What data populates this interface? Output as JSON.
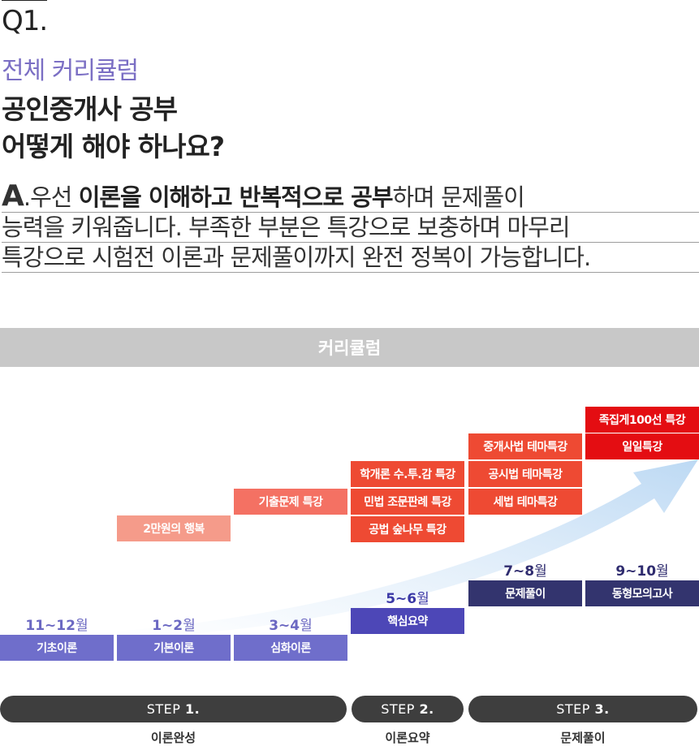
{
  "header": {
    "q_number": "Q1.",
    "subtitle": "전체 커리큘럼",
    "title_line1": "공인중개사 공부",
    "title_line2": "어떻게 해야 하나요?"
  },
  "answer": {
    "prefix": "A",
    "dot": ".",
    "l1_a": "우선 ",
    "l1_bold": "이론을 이해하고 반복적으로 공부",
    "l1_b": "하며 문제풀이",
    "line2": "능력을 키워줍니다. 부족한 부분은 특강으로 보충하며 마무리",
    "line3": "특강으로 시험전 이론과 문제풀이까지 완전 정복이 가능합니다."
  },
  "banner": "커리큘럼",
  "curriculum": {
    "months": {
      "m1": {
        "num": "11~12",
        "unit": "월"
      },
      "m2": {
        "num": "1~2",
        "unit": "월"
      },
      "m3": {
        "num": "3~4",
        "unit": "월"
      },
      "m4": {
        "num": "5~6",
        "unit": "월"
      },
      "m5": {
        "num": "7~8",
        "unit": "월"
      },
      "m6": {
        "num": "9~10",
        "unit": "월"
      }
    },
    "base": {
      "c1": "기초이론",
      "c2": "기본이론",
      "c3": "심화이론",
      "c4": "핵심요약",
      "c5": "문제풀이",
      "c6": "동형모의고사"
    },
    "specials": {
      "s1": "2만원의 행복",
      "s2": "기출문제 특강",
      "s3a": "학개론 수.투.감 특강",
      "s3b": "민법 조문판례 특강",
      "s3c": "공법 숲나무 특강",
      "s4a": "중개사법 테마특강",
      "s4b": "공시법 테마특강",
      "s4c": "세법 테마특강",
      "s5a": "족집게100선 특강",
      "s5b": "일일특강"
    },
    "colors": {
      "light_pink": "#f59b8a",
      "pink": "#f47163",
      "orange": "#ee4a33",
      "red": "#e40d12",
      "light_blue": "#6f6ecb",
      "mid_blue": "#4d47b7",
      "dark_blue": "#33346e"
    }
  },
  "steps": {
    "s1": {
      "prefix": "STEP",
      "num": "1.",
      "label": "이론완성"
    },
    "s2": {
      "prefix": "STEP",
      "num": "2.",
      "label": "이론요약"
    },
    "s3": {
      "prefix": "STEP",
      "num": "3.",
      "label": "문제풀이"
    }
  }
}
